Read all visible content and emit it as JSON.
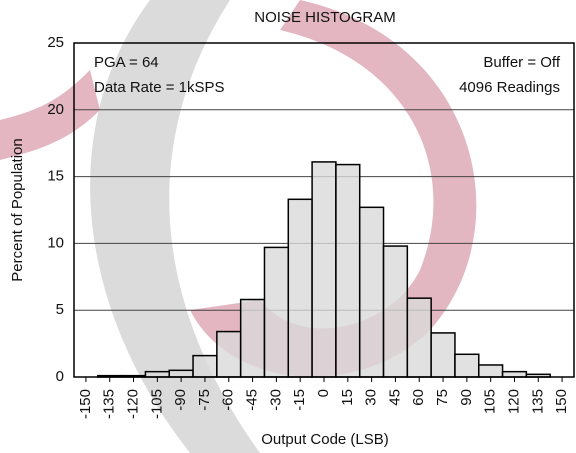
{
  "chart_data": {
    "type": "histogram",
    "title": "NOISE HISTOGRAM",
    "x_label": "Output Code (LSB)",
    "y_label": "Percent of Population",
    "annotations": [
      "PGA = 64",
      "Data Rate = 1kSPS",
      "Buffer = Off",
      "4096 Readings"
    ],
    "bins": [
      -142.5,
      -127.5,
      -112.5,
      -97.5,
      -82.5,
      -67.5,
      -52.5,
      -37.5,
      -22.5,
      -7.5,
      7.5,
      22.5,
      37.5,
      52.5,
      67.5,
      82.5,
      97.5,
      112.5,
      127.5,
      142.5
    ],
    "values": [
      0.1,
      0.1,
      0.4,
      0.5,
      1.6,
      3.4,
      5.8,
      9.7,
      13.3,
      16.1,
      15.9,
      12.7,
      9.8,
      5.9,
      3.3,
      1.7,
      0.9,
      0.4,
      0.2
    ],
    "color": "#d9d9d9",
    "xlim": [
      -157.5,
      157.5
    ],
    "xticks": [
      -150,
      -135,
      -120,
      -105,
      -90,
      -75,
      -60,
      -45,
      -30,
      -15,
      0,
      15,
      30,
      45,
      60,
      75,
      90,
      105,
      120,
      135,
      150
    ],
    "ylim": [
      0,
      25
    ],
    "yticks": [
      0,
      5,
      10,
      15,
      20,
      25
    ],
    "grid": true
  }
}
